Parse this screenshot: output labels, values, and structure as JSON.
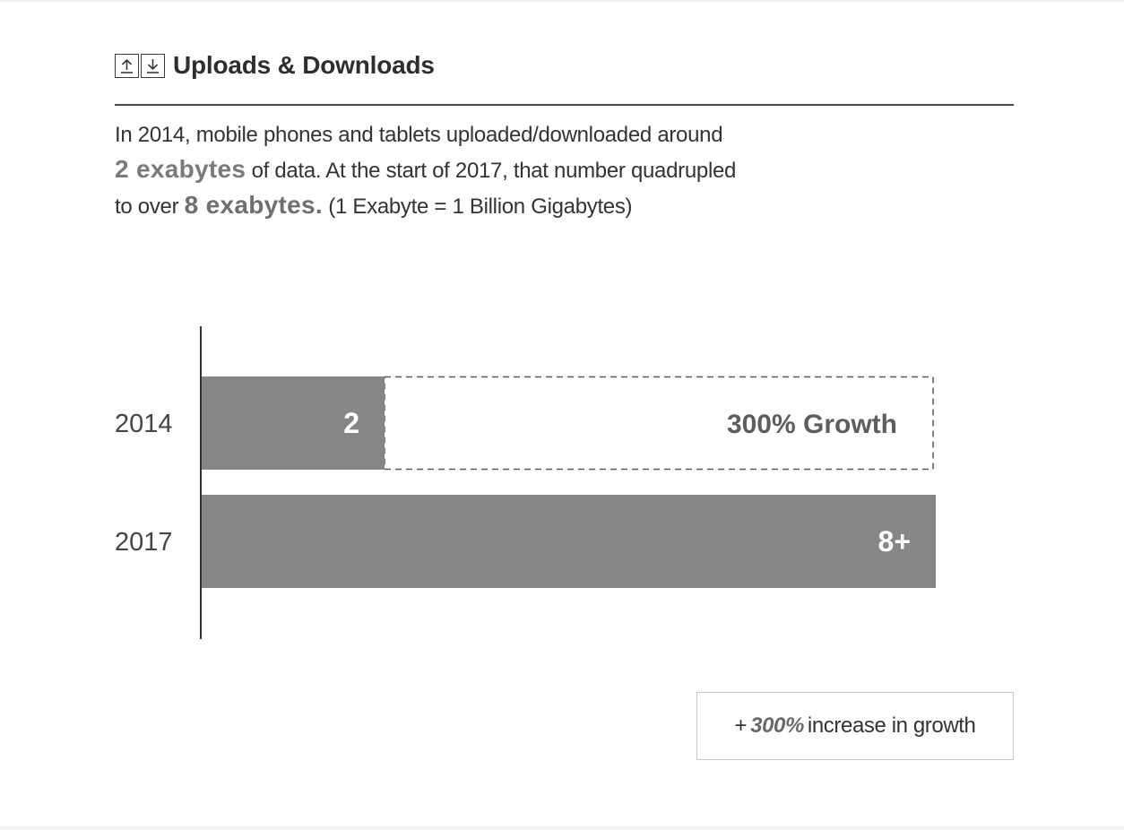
{
  "header": {
    "title": "Uploads & Downloads",
    "icons": [
      "upload-arrow-icon",
      "download-arrow-icon"
    ]
  },
  "description": {
    "line1": "In 2014, mobile phones and tablets uploaded/downloaded around",
    "big1": "2 exabytes",
    "line2": " of data. At the start of 2017, that number quadrupled",
    "line3_pre": "to over ",
    "big2": "8 exabytes.",
    "line3_post": " (1 Exabyte = 1 Billion Gigabytes)"
  },
  "chart_data": {
    "type": "bar",
    "orientation": "horizontal",
    "categories": [
      "2014",
      "2017"
    ],
    "values": [
      2,
      8
    ],
    "data_labels": [
      "2",
      "8+"
    ],
    "units": "exabytes",
    "xlim": [
      0,
      8
    ],
    "growth_annotation": "300% Growth",
    "bar_color": "#868686",
    "label_color": "#ffffff"
  },
  "callout": {
    "prefix": "+ ",
    "percent": "300%",
    "suffix": "increase in growth"
  }
}
